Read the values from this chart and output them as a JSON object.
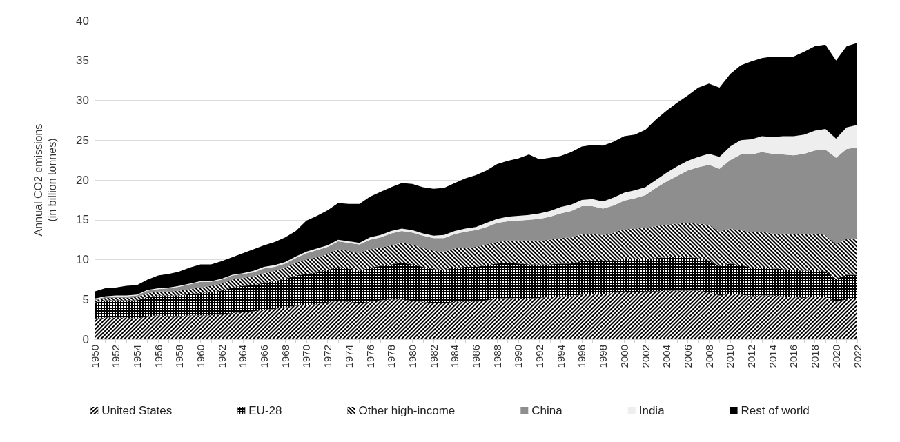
{
  "chart_data": {
    "type": "area",
    "stacked": true,
    "ylabel": "Annual CO2 emissions\n(in billion tonnes)",
    "categories": [
      "1950",
      null,
      "1952",
      null,
      "1954",
      null,
      "1956",
      null,
      "1958",
      null,
      "1960",
      null,
      "1962",
      null,
      "1964",
      null,
      "1966",
      null,
      "1968",
      null,
      "1970",
      null,
      "1972",
      null,
      "1974",
      null,
      "1976",
      null,
      "1978",
      null,
      "1980",
      null,
      "1982",
      null,
      "1984",
      null,
      "1986",
      null,
      "1988",
      null,
      "1990",
      null,
      "1992",
      null,
      "1994",
      null,
      "1996",
      null,
      "1998",
      null,
      "2000",
      null,
      "2002",
      null,
      "2004",
      null,
      "2006",
      null,
      "2008",
      null,
      "2010",
      null,
      "2012",
      null,
      "2014",
      null,
      "2016",
      null,
      "2018",
      null,
      "2020",
      null,
      "2022"
    ],
    "ylim": [
      0,
      40
    ],
    "yticks": [
      0,
      5,
      10,
      15,
      20,
      25,
      30,
      35,
      40
    ],
    "grid": "y",
    "legend": "bottom",
    "series": [
      {
        "name": "United States",
        "color": "#000000",
        "values": [
          2.6,
          2.7,
          2.7,
          2.7,
          2.6,
          2.9,
          3.0,
          2.9,
          2.9,
          3.0,
          3.0,
          3.0,
          3.1,
          3.3,
          3.4,
          3.5,
          3.7,
          3.8,
          4.0,
          4.2,
          4.3,
          4.4,
          4.6,
          4.8,
          4.7,
          4.5,
          4.7,
          4.9,
          5.0,
          5.0,
          4.8,
          4.7,
          4.5,
          4.5,
          4.7,
          4.7,
          4.7,
          4.9,
          5.1,
          5.2,
          5.1,
          5.1,
          5.2,
          5.3,
          5.4,
          5.4,
          5.6,
          5.7,
          5.7,
          5.8,
          6.0,
          5.9,
          6.0,
          6.0,
          6.1,
          6.1,
          6.1,
          6.1,
          5.9,
          5.5,
          5.7,
          5.6,
          5.4,
          5.5,
          5.5,
          5.4,
          5.3,
          5.2,
          5.4,
          5.3,
          4.7,
          5.0,
          5.1
        ]
      },
      {
        "name": "EU-28",
        "color": "#000000",
        "values": [
          2.0,
          2.2,
          2.2,
          2.2,
          2.3,
          2.4,
          2.5,
          2.6,
          2.6,
          2.7,
          2.8,
          2.9,
          3.0,
          3.2,
          3.3,
          3.3,
          3.4,
          3.5,
          3.6,
          3.8,
          3.9,
          4.0,
          4.1,
          4.3,
          4.2,
          4.1,
          4.3,
          4.3,
          4.4,
          4.6,
          4.6,
          4.4,
          4.3,
          4.2,
          4.3,
          4.4,
          4.4,
          4.4,
          4.4,
          4.4,
          4.4,
          4.3,
          4.2,
          4.1,
          4.1,
          4.1,
          4.2,
          4.1,
          4.1,
          4.1,
          4.1,
          4.2,
          4.1,
          4.2,
          4.2,
          4.2,
          4.2,
          4.1,
          4.0,
          3.7,
          3.8,
          3.7,
          3.6,
          3.5,
          3.4,
          3.4,
          3.4,
          3.4,
          3.3,
          3.2,
          2.9,
          3.1,
          3.0
        ]
      },
      {
        "name": "Other high-income",
        "color": "#000000",
        "values": [
          0.3,
          0.3,
          0.3,
          0.3,
          0.4,
          0.5,
          0.5,
          0.5,
          0.6,
          0.6,
          0.7,
          0.8,
          0.9,
          1.0,
          1.0,
          1.1,
          1.2,
          1.3,
          1.4,
          1.6,
          1.8,
          1.9,
          2.0,
          2.2,
          2.2,
          2.2,
          2.3,
          2.3,
          2.4,
          2.5,
          2.5,
          2.4,
          2.3,
          2.3,
          2.4,
          2.4,
          2.5,
          2.6,
          2.7,
          2.8,
          2.9,
          3.0,
          3.0,
          3.1,
          3.2,
          3.3,
          3.4,
          3.4,
          3.3,
          3.5,
          3.7,
          3.8,
          3.9,
          4.0,
          4.1,
          4.2,
          4.3,
          4.3,
          4.5,
          4.3,
          4.4,
          4.4,
          4.4,
          4.5,
          4.4,
          4.5,
          4.5,
          4.6,
          4.6,
          4.6,
          4.3,
          4.5,
          4.6
        ]
      },
      {
        "name": "China",
        "color": "#8e8e8e",
        "values": [
          0.1,
          0.1,
          0.2,
          0.2,
          0.2,
          0.3,
          0.3,
          0.4,
          0.5,
          0.6,
          0.7,
          0.5,
          0.5,
          0.5,
          0.5,
          0.5,
          0.6,
          0.5,
          0.5,
          0.6,
          0.8,
          0.9,
          0.9,
          1.0,
          1.0,
          1.1,
          1.2,
          1.3,
          1.5,
          1.5,
          1.5,
          1.5,
          1.6,
          1.7,
          1.8,
          2.0,
          2.1,
          2.2,
          2.4,
          2.4,
          2.5,
          2.6,
          2.7,
          2.9,
          3.1,
          3.3,
          3.5,
          3.5,
          3.3,
          3.4,
          3.6,
          3.8,
          4.1,
          4.8,
          5.4,
          6.0,
          6.6,
          7.1,
          7.5,
          7.9,
          8.6,
          9.5,
          9.8,
          10.0,
          10.0,
          9.9,
          9.9,
          10.1,
          10.4,
          10.7,
          10.9,
          11.3,
          11.4
        ]
      },
      {
        "name": "India",
        "color": "#eeeeee",
        "values": [
          0.1,
          0.1,
          0.1,
          0.1,
          0.1,
          0.1,
          0.1,
          0.1,
          0.1,
          0.1,
          0.1,
          0.1,
          0.1,
          0.1,
          0.1,
          0.2,
          0.2,
          0.2,
          0.2,
          0.2,
          0.2,
          0.2,
          0.2,
          0.2,
          0.2,
          0.2,
          0.3,
          0.3,
          0.3,
          0.3,
          0.3,
          0.3,
          0.3,
          0.4,
          0.4,
          0.4,
          0.4,
          0.5,
          0.5,
          0.6,
          0.6,
          0.6,
          0.7,
          0.7,
          0.8,
          0.8,
          0.8,
          0.9,
          0.9,
          1.0,
          1.0,
          1.0,
          1.0,
          1.0,
          1.1,
          1.2,
          1.2,
          1.3,
          1.4,
          1.5,
          1.7,
          1.8,
          1.9,
          2.0,
          2.1,
          2.3,
          2.4,
          2.4,
          2.5,
          2.6,
          2.4,
          2.7,
          2.8
        ]
      },
      {
        "name": "Rest of world",
        "color": "#000000",
        "values": [
          0.9,
          1.0,
          1.0,
          1.2,
          1.2,
          1.3,
          1.6,
          1.7,
          1.8,
          2.0,
          2.1,
          2.1,
          2.2,
          2.2,
          2.5,
          2.7,
          2.7,
          2.9,
          3.1,
          3.2,
          3.9,
          4.1,
          4.4,
          4.6,
          4.7,
          4.9,
          5.1,
          5.4,
          5.5,
          5.7,
          5.8,
          5.8,
          5.9,
          5.9,
          6.0,
          6.3,
          6.5,
          6.6,
          6.9,
          7.0,
          7.2,
          7.6,
          6.8,
          6.7,
          6.4,
          6.6,
          6.7,
          6.8,
          7.0,
          7.0,
          7.1,
          7.0,
          7.2,
          7.6,
          7.8,
          8.0,
          8.2,
          8.7,
          8.8,
          8.7,
          9.1,
          9.4,
          9.8,
          9.8,
          10.1,
          10.0,
          10.0,
          10.4,
          10.6,
          10.6,
          9.8,
          10.2,
          10.3
        ]
      }
    ]
  }
}
